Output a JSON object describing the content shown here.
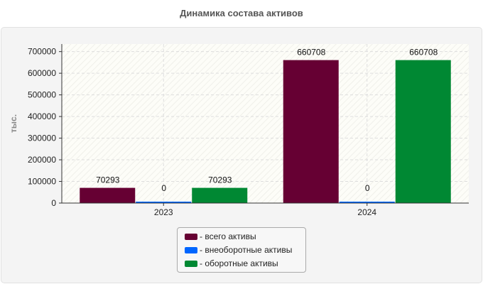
{
  "chart_data": {
    "type": "bar",
    "title": "Динамика состава активов",
    "ylabel": "тыс.",
    "xlabel": "",
    "categories": [
      "2023",
      "2024"
    ],
    "ylim": [
      0,
      735000
    ],
    "yticks": [
      0,
      100000,
      200000,
      300000,
      400000,
      500000,
      600000,
      700000
    ],
    "grid": true,
    "legend_position": "bottom",
    "series": [
      {
        "name": "- всего активы",
        "color": "#660033",
        "values": [
          70293,
          660708
        ]
      },
      {
        "name": "- внеоборотные активы",
        "color": "#0066ff",
        "values": [
          0,
          0
        ]
      },
      {
        "name": "- оборотные активы",
        "color": "#008833",
        "values": [
          70293,
          660708
        ]
      }
    ]
  }
}
